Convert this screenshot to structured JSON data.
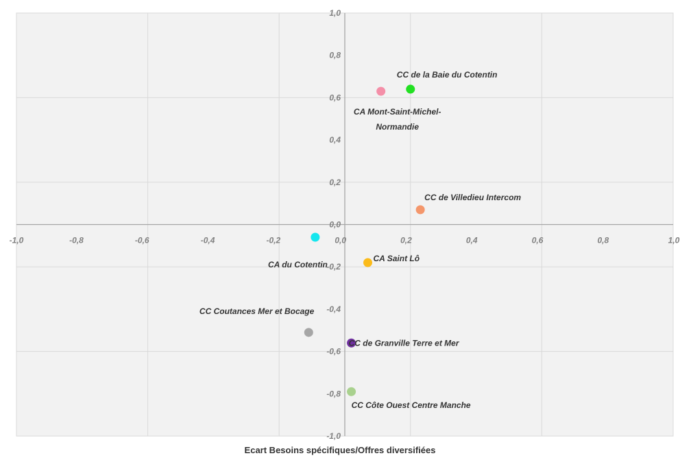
{
  "chart_data": {
    "type": "scatter",
    "title": "",
    "xlabel": "Ecart Besoins spécifiques/Offres diversifiées",
    "ylabel": "",
    "xlim": [
      -1.0,
      1.0
    ],
    "ylim": [
      -1.0,
      1.0
    ],
    "grid": true,
    "x_ticks": [
      "-1,0",
      "-0,8",
      "-0,6",
      "-0,4",
      "-0,2",
      "0,0",
      "0,2",
      "0,4",
      "0,6",
      "0,8",
      "1,0"
    ],
    "y_ticks": [
      "1,0",
      "0,8",
      "0,6",
      "0,4",
      "0,2",
      "0,0",
      "-0,2",
      "-0,4",
      "-0,6",
      "-0,8",
      "-1,0"
    ],
    "points": [
      {
        "label": "CC de la Baie du Cotentin",
        "x": 0.2,
        "y": 0.64,
        "color": "#22e022"
      },
      {
        "label": "CA Mont-Saint-Michel-Normandie",
        "label_lines": [
          "CA Mont-Saint-Michel-",
          "Normandie"
        ],
        "x": 0.11,
        "y": 0.63,
        "color": "#f48fa8"
      },
      {
        "label": "CC de Villedieu Intercom",
        "x": 0.23,
        "y": 0.07,
        "color": "#f4976c"
      },
      {
        "label": "CA du Cotentin",
        "x": -0.09,
        "y": -0.06,
        "color": "#16e6ee"
      },
      {
        "label": "CA Saint Lô",
        "x": 0.07,
        "y": -0.18,
        "color": "#fbbb1a"
      },
      {
        "label": "CC Coutances Mer et Bocage",
        "x": -0.11,
        "y": -0.51,
        "color": "#a6a6a6"
      },
      {
        "label": "CC de Granville Terre et Mer",
        "x": 0.02,
        "y": -0.56,
        "color": "#7030a0"
      },
      {
        "label": "CC Côte Ouest Centre Manche",
        "x": 0.02,
        "y": -0.79,
        "color": "#a9d18e"
      }
    ]
  }
}
